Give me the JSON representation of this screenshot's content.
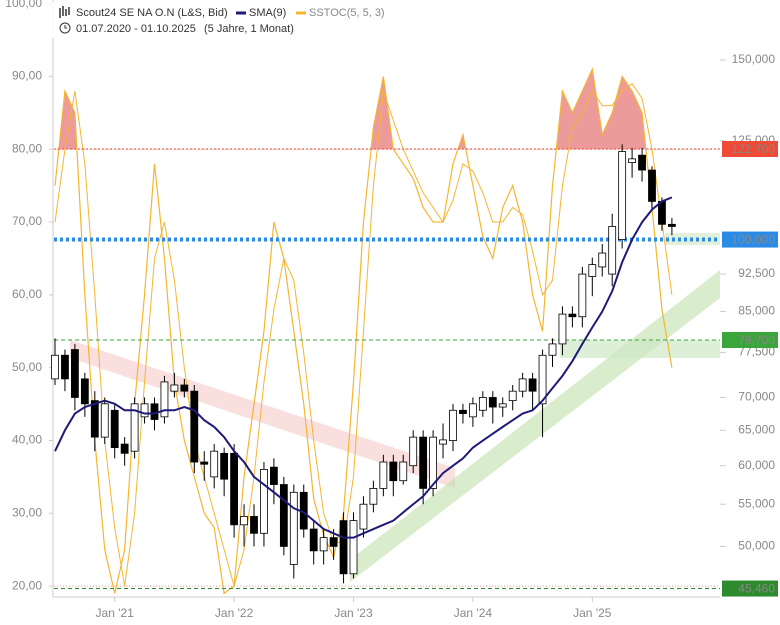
{
  "chart_data": {
    "type": "candlestick",
    "title": "Scout24 SE NA O.N (L&S, Bid)",
    "date_range": "01.07.2020 - 01.10.2025",
    "period": "(5 Jahre, 1 Monat)",
    "categories": [
      null,
      null,
      null,
      null,
      null,
      null,
      "Jan '21",
      null,
      null,
      null,
      null,
      null,
      null,
      null,
      null,
      null,
      null,
      null,
      "Jan '22",
      null,
      null,
      null,
      null,
      null,
      null,
      null,
      null,
      null,
      null,
      null,
      "Jan '23",
      null,
      null,
      null,
      null,
      null,
      null,
      null,
      null,
      null,
      null,
      null,
      "Jan '24",
      null,
      null,
      null,
      null,
      null,
      null,
      null,
      null,
      null,
      null,
      null,
      "Jan '25",
      null,
      null,
      null,
      null,
      null,
      null,
      null,
      null
    ],
    "open": [
      73,
      77,
      78,
      73,
      69.5,
      64,
      68,
      63,
      62,
      67,
      69,
      67,
      71,
      72,
      71,
      60.5,
      58.5,
      61.7,
      61.7,
      52.5,
      53.5,
      51.5,
      59.8,
      57.5,
      48,
      56.5,
      52,
      49.5,
      51,
      53,
      47,
      52,
      55,
      57,
      60.5,
      58,
      60,
      64,
      57,
      63,
      63.5,
      68,
      67,
      68,
      70,
      68.5,
      69.5,
      71,
      73,
      69,
      77,
      79,
      84.5,
      84,
      92,
      94,
      92.5,
      100,
      119,
      121,
      117,
      109,
      103.5
    ],
    "high": [
      80,
      78,
      79,
      74,
      71,
      70,
      69,
      64,
      70,
      70,
      70,
      73.5,
      74,
      73,
      72,
      62,
      63,
      62.5,
      63,
      55,
      55,
      60.5,
      61,
      58.5,
      57.5,
      57.5,
      53,
      52,
      52,
      54,
      54,
      56,
      58,
      61.5,
      61.5,
      61.5,
      65,
      65,
      65,
      66,
      69,
      69,
      70,
      71,
      71,
      70,
      72,
      74,
      74,
      78,
      80,
      86,
      86,
      94,
      96,
      99,
      106,
      124,
      123,
      123,
      118,
      110,
      105
    ],
    "low": [
      72,
      71,
      68,
      67,
      62,
      63,
      61,
      60,
      61,
      66,
      65,
      66,
      70,
      70,
      59,
      58,
      57,
      56,
      51,
      50,
      50,
      50,
      55,
      49,
      46.5,
      51,
      48,
      48,
      48.5,
      46,
      46.5,
      51,
      54,
      56,
      56,
      57.5,
      59,
      55,
      56,
      61,
      62,
      66,
      65.5,
      67,
      66,
      67,
      68,
      70,
      68,
      64,
      75,
      77,
      82,
      82,
      88,
      92,
      90,
      98,
      115,
      114,
      107,
      102,
      101
    ],
    "close": [
      77,
      73,
      70,
      69,
      64,
      69,
      62.5,
      61.7,
      69,
      69,
      66.6,
      72.5,
      72,
      71,
      60.5,
      60.2,
      62,
      58.2,
      52.5,
      53.5,
      51.5,
      59.5,
      57.5,
      50,
      56.5,
      52,
      49.5,
      51,
      50,
      47,
      53,
      55,
      57,
      60.5,
      58,
      60.5,
      64,
      57,
      64,
      63.6,
      68,
      67.5,
      69,
      70,
      68.5,
      69,
      71,
      73,
      71,
      77,
      79,
      84.5,
      84,
      92.5,
      94.5,
      97,
      103,
      122,
      120,
      117,
      109,
      103.5,
      103
    ],
    "up_color": "#ffffff",
    "down_color": "#000000",
    "series": [
      {
        "name": "SMA(9)",
        "color": "#1e1a78",
        "axis": "y2",
        "values": [
          62,
          65,
          67.5,
          68.5,
          69,
          69.5,
          69,
          68,
          68,
          67.5,
          67.5,
          68,
          68,
          68.5,
          68,
          66.5,
          65.5,
          64,
          62,
          60.5,
          58.5,
          57.5,
          56.5,
          55.5,
          54.5,
          54,
          53,
          52,
          51.5,
          51,
          51,
          51.5,
          52,
          52.5,
          53,
          54,
          55,
          56,
          57.5,
          59,
          60,
          61,
          62.5,
          63.5,
          64.5,
          65.5,
          66.5,
          67.5,
          68,
          69.5,
          71.5,
          73.5,
          76,
          79,
          82,
          85,
          89,
          95,
          100,
          104,
          107,
          109,
          110
        ]
      },
      {
        "name": "SSTOC(5, 5, 3)",
        "color": "#f5b531",
        "overbought_fill": "#ec9a9a",
        "thresholds": [
          20,
          80
        ],
        "values": [
          75,
          88,
          85,
          60,
          40,
          25,
          19,
          25,
          45,
          60,
          78,
          65,
          48,
          40,
          35,
          30,
          28,
          19,
          20,
          35,
          45,
          55,
          70,
          65,
          55,
          45,
          32,
          27,
          24,
          30,
          48,
          70,
          83,
          90,
          80,
          78,
          76,
          72,
          70,
          70,
          78,
          82,
          75,
          68,
          65,
          72,
          75,
          70,
          60,
          55,
          75,
          88,
          85,
          88,
          91,
          82,
          85,
          90,
          88,
          85,
          72,
          58,
          50
        ],
        "signal": [
          70,
          80,
          88,
          78,
          60,
          40,
          28,
          20,
          30,
          48,
          65,
          70,
          62,
          50,
          40,
          35,
          30,
          25,
          20,
          25,
          35,
          48,
          58,
          65,
          62,
          52,
          40,
          30,
          26,
          26,
          35,
          55,
          75,
          88,
          84,
          80,
          77,
          74,
          72,
          70,
          73,
          78,
          77,
          74,
          70,
          70,
          72,
          71,
          66,
          60,
          62,
          75,
          83,
          85,
          88,
          86,
          86,
          88,
          89,
          87,
          80,
          70,
          60
        ]
      }
    ],
    "ylim": [
      18.5,
      100.5
    ],
    "yticks": [
      {
        "value": 20,
        "label": "20,00"
      },
      {
        "value": 30,
        "label": "30,00"
      },
      {
        "value": 40,
        "label": "40,00"
      },
      {
        "value": 50,
        "label": "50,00"
      },
      {
        "value": 60,
        "label": "60,00"
      },
      {
        "value": 70,
        "label": "70,00"
      },
      {
        "value": 80,
        "label": "80,00"
      },
      {
        "value": 90,
        "label": "90,00"
      },
      {
        "value": 100,
        "label": "100,00"
      }
    ],
    "y2lim": [
      44.6,
      171.8
    ],
    "y2_log": true,
    "y2ticks": [
      {
        "value": 150,
        "label": "150,000"
      },
      {
        "value": 125,
        "label": "125,000"
      },
      {
        "value": 92.5,
        "label": "92,500"
      },
      {
        "value": 85,
        "label": "85,000"
      },
      {
        "value": 77.5,
        "label": "77,500"
      },
      {
        "value": 70,
        "label": "70,000"
      },
      {
        "value": 65,
        "label": "65,000"
      },
      {
        "value": 60,
        "label": "60,000"
      },
      {
        "value": 55,
        "label": "55,000"
      },
      {
        "value": 50,
        "label": "50,000"
      }
    ],
    "levels": [
      {
        "value": 122.7,
        "label": "122,700",
        "color": "#ef4a35",
        "dash": "2,2",
        "width": 1
      },
      {
        "value": 100,
        "label": "100,000",
        "color": "#2a8be6",
        "dash": "3,3",
        "width": 4
      },
      {
        "value": 79.7,
        "label": "79,700",
        "color": "#3aa53a",
        "dash": "4,3",
        "width": 1
      },
      {
        "value": 45.46,
        "label": "45,460",
        "color": "#2d8a2d",
        "dash": "4,3",
        "width": 1
      }
    ]
  }
}
